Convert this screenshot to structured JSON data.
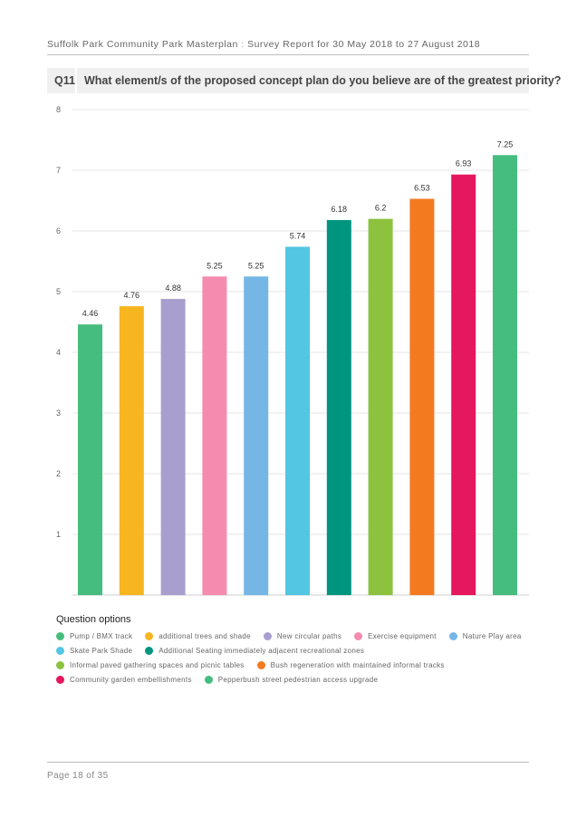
{
  "header": {
    "report_title": "Suffolk Park Community Park Masterplan",
    "separator": ":",
    "report_subtitle": "Survey Report for 30 May 2018 to 27 August 2018"
  },
  "question": {
    "number": "Q11",
    "text": "What element/s of the proposed concept plan do you believe are of the greatest priority?"
  },
  "chart_data": {
    "type": "bar",
    "title": "",
    "xlabel": "",
    "ylabel": "",
    "ylim": [
      0,
      8
    ],
    "yticks": [
      1,
      2,
      3,
      4,
      5,
      6,
      7,
      8
    ],
    "grid": true,
    "legend_position": "bottom",
    "legend_title": "Question options",
    "categories": [
      "Pump / BMX track",
      "additional trees and shade",
      "New circular paths",
      "Exercise equipment",
      "Nature Play area",
      "Skate Park Shade",
      "Additional Seating immediately adjacent recreational zones",
      "Informal paved gathering spaces and picnic tables",
      "Bush regeneration with maintained informal tracks",
      "Community garden embellishments",
      "Pepperbush street pedestrian access upgrade"
    ],
    "values": [
      4.46,
      4.76,
      4.88,
      5.25,
      5.25,
      5.74,
      6.18,
      6.2,
      6.53,
      6.93,
      7.25
    ],
    "value_labels": [
      "4.46",
      "4.76",
      "4.88",
      "5.25",
      "5.25",
      "5.74",
      "6.18",
      "6.2",
      "6.53",
      "6.93",
      "7.25"
    ],
    "colors": [
      "#45bd7f",
      "#f7b51f",
      "#a99fcf",
      "#f48cb0",
      "#75b6e5",
      "#52c6e2",
      "#00957f",
      "#8dc23f",
      "#f47a20",
      "#e5175e",
      "#45bd7f"
    ]
  },
  "footer": {
    "page_label": "Page",
    "page_number": "18",
    "of_label": "of",
    "total_pages": "35"
  }
}
